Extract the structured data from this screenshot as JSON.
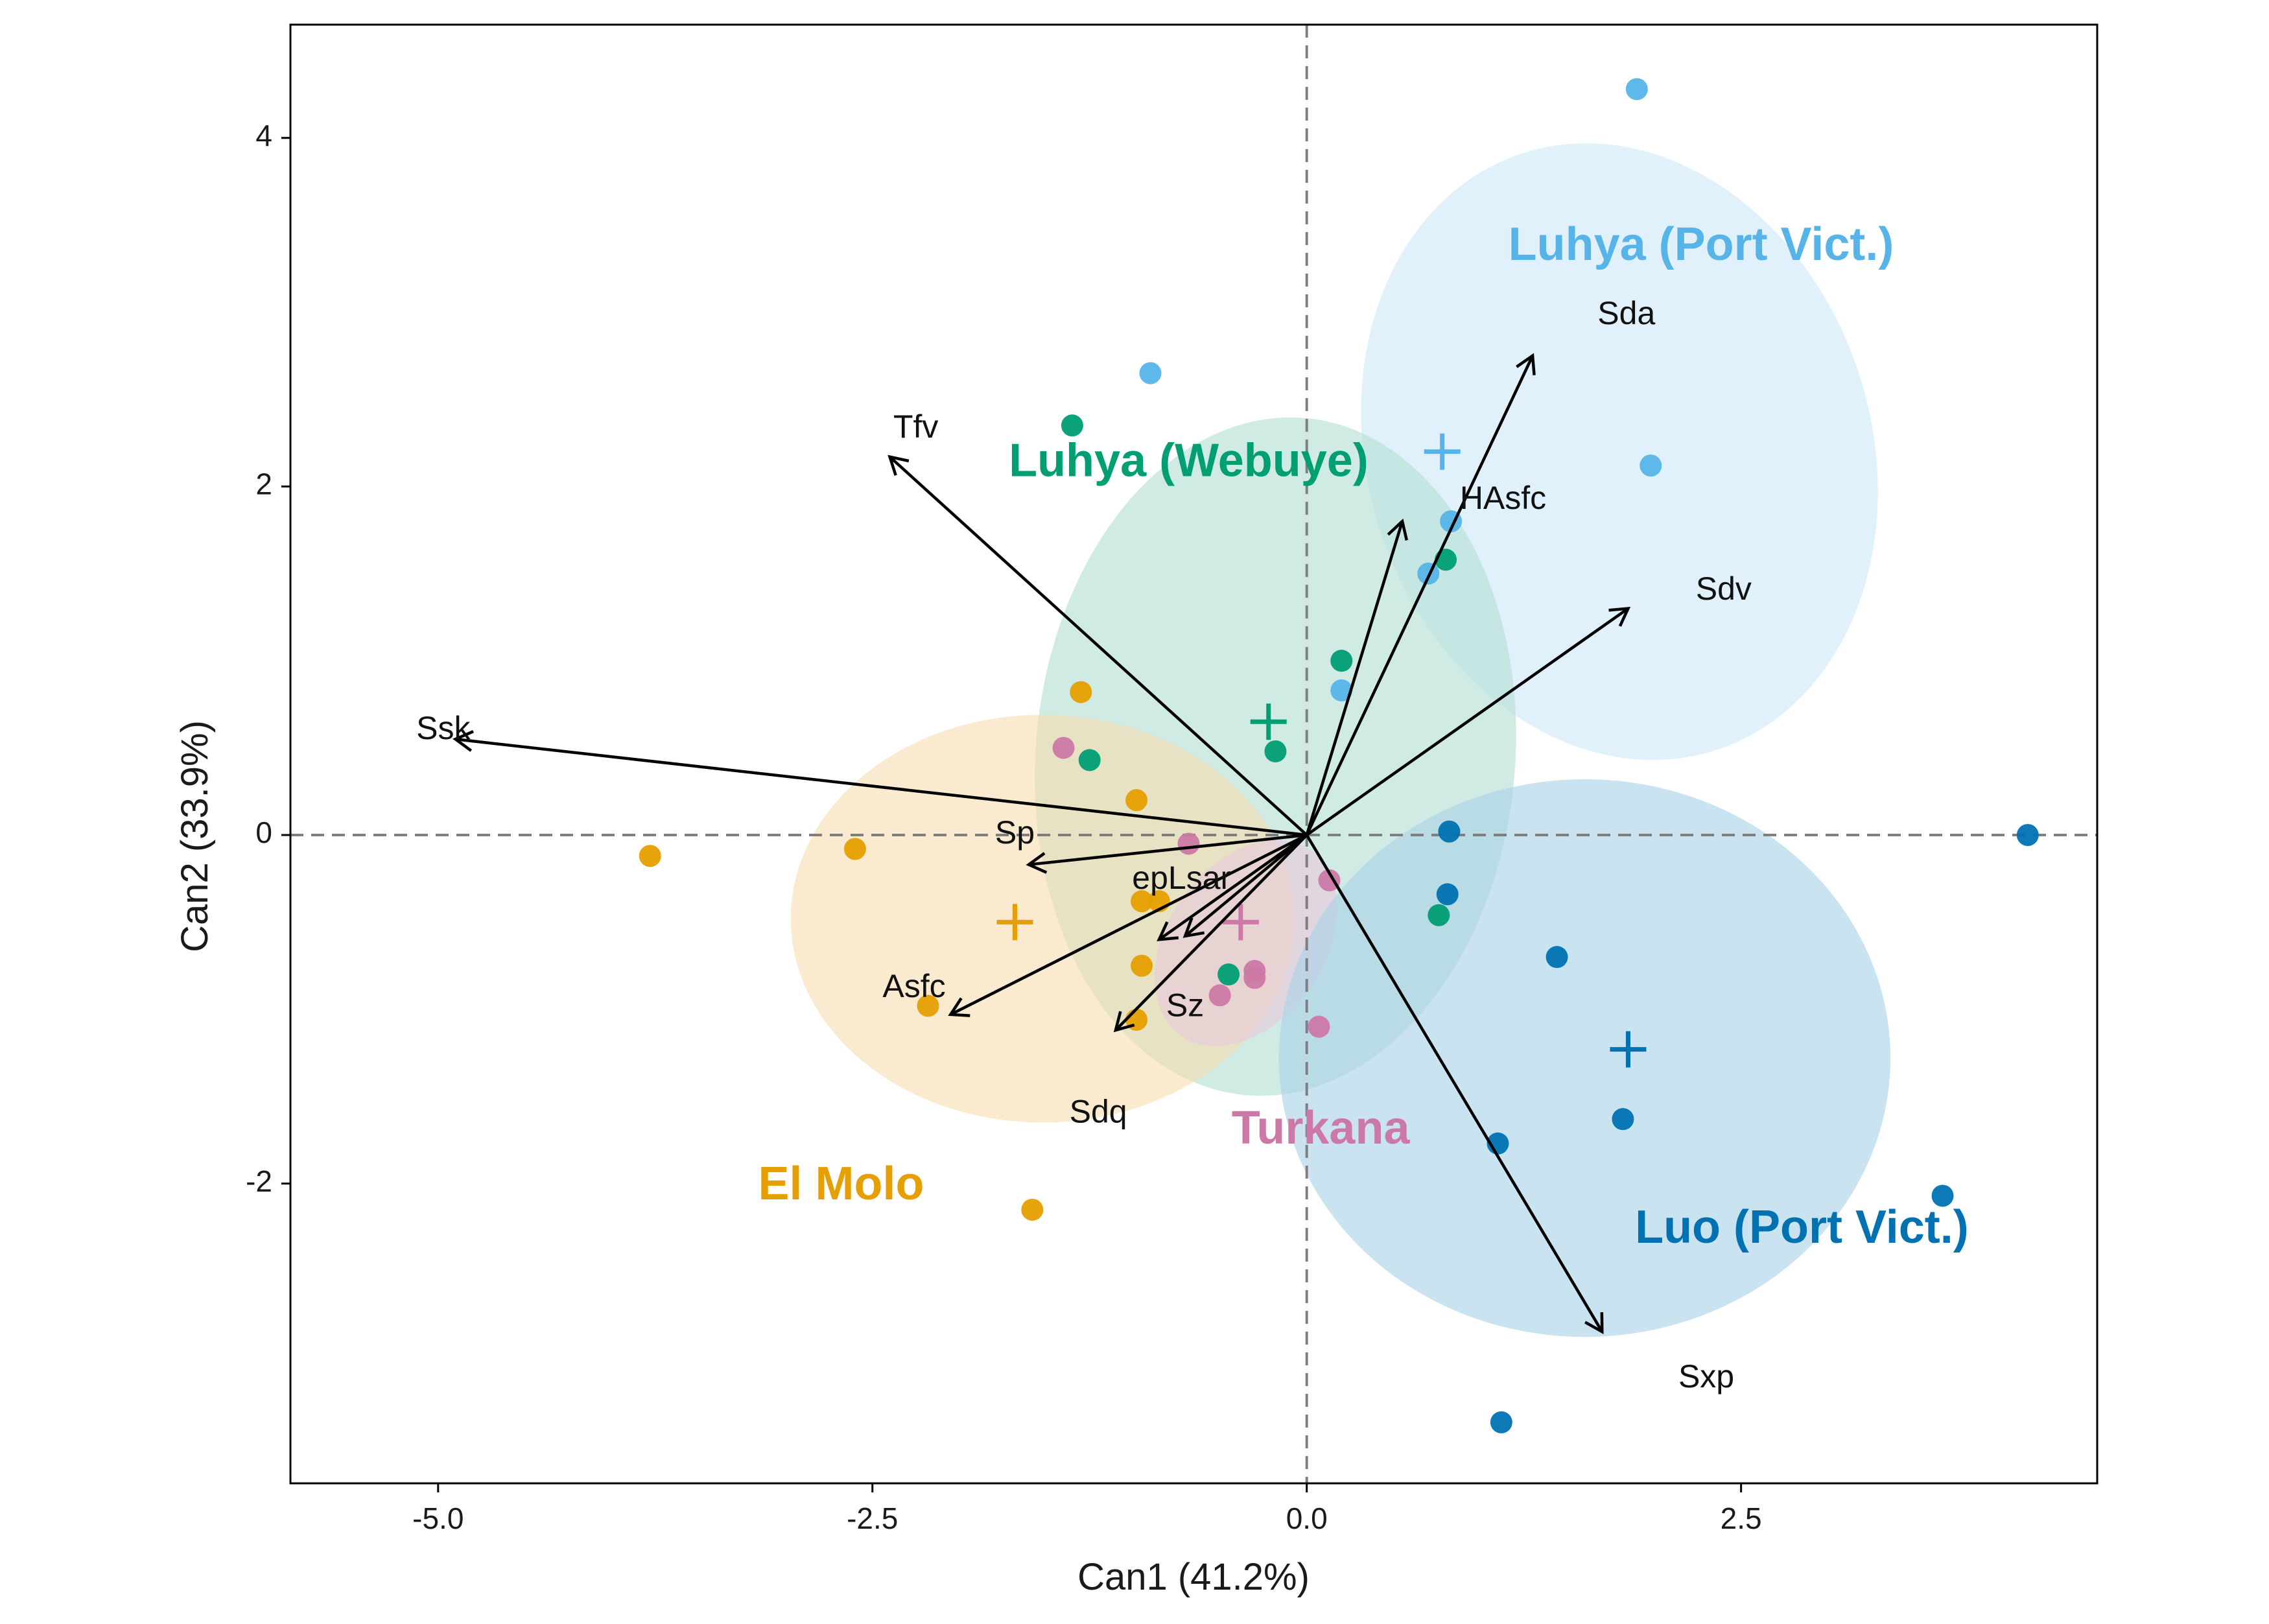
{
  "chart_data": {
    "type": "scatter",
    "subtype": "canonical discriminant biplot",
    "xlabel": "Can1 (41.2%)",
    "ylabel": "Can2 (33.9%)",
    "xlim": [
      -5.85,
      4.55
    ],
    "ylim": [
      -3.72,
      4.65
    ],
    "xticks": [
      -5.0,
      -2.5,
      0.0,
      2.5
    ],
    "xtick_labels": [
      "-5.0",
      "-2.5",
      "0.0",
      "2.5"
    ],
    "yticks": [
      -2,
      0,
      2,
      4
    ],
    "ytick_labels": [
      "-2",
      "0",
      "2",
      "4"
    ],
    "reference_lines": {
      "x": 0,
      "y": 0,
      "style": "dashed",
      "color": "#7f7f7f"
    },
    "grid": false,
    "groups": [
      {
        "name": "Luhya (Port Vict.)",
        "color": "#56B4E9",
        "fill": "#cfe8f8",
        "ellipse": {
          "cx": 1.8,
          "cy": 2.2,
          "rx": 1.45,
          "ry": 1.8,
          "angle_deg": 18
        },
        "centroid": [
          0.78,
          2.2
        ],
        "label_position": [
          2.27,
          3.37
        ],
        "points": [
          [
            1.9,
            4.28
          ],
          [
            -0.9,
            2.65
          ],
          [
            1.98,
            2.12
          ],
          [
            0.83,
            1.8
          ],
          [
            0.7,
            1.5
          ],
          [
            0.2,
            0.83
          ]
        ]
      },
      {
        "name": "Luhya (Webuye)",
        "color": "#009E73",
        "fill": "#b3dfd3",
        "ellipse": {
          "cx": -0.18,
          "cy": 0.45,
          "rx": 1.38,
          "ry": 1.95,
          "angle_deg": -5
        },
        "centroid": [
          -0.22,
          0.65
        ],
        "label_position": [
          -0.68,
          2.13
        ],
        "points": [
          [
            -1.35,
            2.35
          ],
          [
            0.8,
            1.58
          ],
          [
            0.2,
            1.0
          ],
          [
            -0.18,
            0.48
          ],
          [
            -1.25,
            0.43
          ],
          [
            0.76,
            -0.46
          ],
          [
            -0.45,
            -0.8
          ]
        ]
      },
      {
        "name": "El Molo",
        "color": "#E69F00",
        "fill": "#f7ddb1",
        "ellipse": {
          "cx": -1.52,
          "cy": -0.48,
          "rx": 1.45,
          "ry": 1.17,
          "angle_deg": 0
        },
        "centroid": [
          -1.68,
          -0.5
        ],
        "label_position": [
          -2.68,
          -2.02
        ],
        "points": [
          [
            -3.78,
            -0.12
          ],
          [
            -2.6,
            -0.08
          ],
          [
            -2.18,
            -0.98
          ],
          [
            -0.95,
            -0.75
          ],
          [
            -0.85,
            -0.38
          ],
          [
            -0.95,
            -0.38
          ],
          [
            -1.3,
            0.82
          ],
          [
            -0.98,
            0.2
          ],
          [
            -1.58,
            -2.15
          ],
          [
            -0.98,
            -1.06
          ]
        ]
      },
      {
        "name": "Turkana",
        "color": "#CC79A7",
        "fill": "#e9c9dc",
        "ellipse": {
          "cx": -0.35,
          "cy": -0.62,
          "rx": 0.45,
          "ry": 0.65,
          "angle_deg": -35
        },
        "centroid": [
          -0.38,
          -0.5
        ],
        "label_position": [
          0.08,
          -1.7
        ],
        "points": [
          [
            -1.4,
            0.5
          ],
          [
            -0.68,
            -0.05
          ],
          [
            0.13,
            -0.26
          ],
          [
            -0.3,
            -0.78
          ],
          [
            -0.3,
            -0.82
          ],
          [
            -0.5,
            -0.92
          ],
          [
            0.07,
            -1.1
          ]
        ]
      },
      {
        "name": "Luo (Port Vict.)",
        "color": "#0072B2",
        "fill": "#a9d2e6",
        "ellipse": {
          "cx": 1.6,
          "cy": -1.28,
          "rx": 1.76,
          "ry": 1.6,
          "angle_deg": 0
        },
        "centroid": [
          1.85,
          -1.23
        ],
        "label_position": [
          2.85,
          -2.27
        ],
        "points": [
          [
            4.15,
            0.0
          ],
          [
            0.82,
            0.02
          ],
          [
            0.81,
            -0.34
          ],
          [
            1.44,
            -0.7
          ],
          [
            1.82,
            -1.63
          ],
          [
            1.1,
            -1.77
          ],
          [
            3.66,
            -2.07
          ],
          [
            1.12,
            -3.37
          ]
        ]
      }
    ],
    "vectors": [
      {
        "name": "Sda",
        "x": 1.3,
        "y": 2.75,
        "label_x": 1.84,
        "label_y": 2.98
      },
      {
        "name": "HAsfc",
        "x": 0.55,
        "y": 1.8,
        "label_x": 1.13,
        "label_y": 1.92
      },
      {
        "name": "Sdv",
        "x": 1.85,
        "y": 1.3,
        "label_x": 2.4,
        "label_y": 1.4
      },
      {
        "name": "Tfv",
        "x": -2.4,
        "y": 2.17,
        "label_x": -2.25,
        "label_y": 2.33
      },
      {
        "name": "Ssk",
        "x": -4.9,
        "y": 0.55,
        "label_x": -4.97,
        "label_y": 0.6
      },
      {
        "name": "Sp",
        "x": -1.6,
        "y": -0.17,
        "label_x": -1.68,
        "label_y": 0.0
      },
      {
        "name": "epLsar",
        "x": -0.7,
        "y": -0.58,
        "label_x": -0.72,
        "label_y": -0.26
      },
      {
        "name": "Asfc",
        "x": -2.05,
        "y": -1.03,
        "label_x": -2.26,
        "label_y": -0.88
      },
      {
        "name": "Sz",
        "x": -0.85,
        "y": -0.6,
        "label_x": -0.7,
        "label_y": -0.99
      },
      {
        "name": "Sdq",
        "x": -1.1,
        "y": -1.12,
        "label_x": -1.2,
        "label_y": -1.6
      },
      {
        "name": "Sxp",
        "x": 1.7,
        "y": -2.85,
        "label_x": 2.3,
        "label_y": -3.12
      }
    ]
  }
}
